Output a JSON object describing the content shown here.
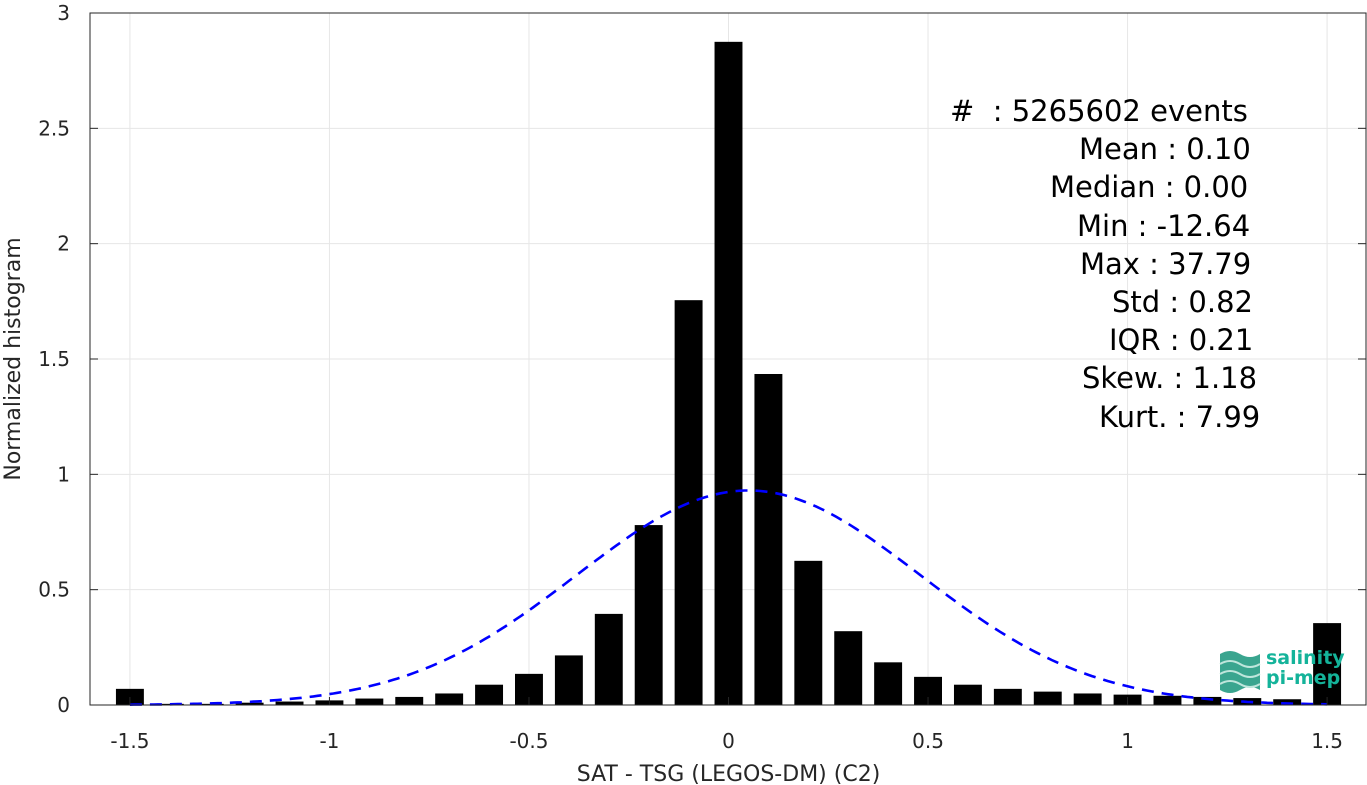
{
  "chart_data": {
    "type": "bar",
    "xlabel": "SAT - TSG (LEGOS-DM) (C2)",
    "ylabel": "Normalized histogram",
    "xlim": [
      -1.6,
      1.6
    ],
    "ylim": [
      0,
      3
    ],
    "xticks": [
      "-1.5",
      "-1",
      "-0.5",
      "0",
      "0.5",
      "1",
      "1.5"
    ],
    "yticks": [
      "0",
      "0.5",
      "1",
      "1.5",
      "2",
      "2.5",
      "3"
    ],
    "grid": true,
    "bar_centers": [
      -1.5,
      -1.4,
      -1.3,
      -1.2,
      -1.1,
      -1.0,
      -0.9,
      -0.8,
      -0.7,
      -0.6,
      -0.5,
      -0.4,
      -0.3,
      -0.2,
      -0.1,
      0.0,
      0.1,
      0.2,
      0.3,
      0.4,
      0.5,
      0.6,
      0.7,
      0.8,
      0.9,
      1.0,
      1.1,
      1.2,
      1.3,
      1.4,
      1.5
    ],
    "values": [
      0.07,
      0.005,
      0.005,
      0.01,
      0.015,
      0.02,
      0.028,
      0.035,
      0.05,
      0.088,
      0.135,
      0.215,
      0.395,
      0.78,
      1.755,
      2.875,
      1.435,
      0.625,
      0.32,
      0.185,
      0.122,
      0.088,
      0.07,
      0.058,
      0.05,
      0.045,
      0.04,
      0.035,
      0.03,
      0.025,
      0.355
    ],
    "fit_curve": {
      "style": "dashed",
      "color": "#0000ff",
      "mean": 0.05,
      "std": 0.43,
      "peak": 0.93
    },
    "stats": {
      "count": "#  : 5265602 events",
      "mean": "Mean : 0.10",
      "median": "Median : 0.00",
      "min": "Min : -12.64",
      "max": "Max : 37.79",
      "std": "Std : 0.82",
      "iqr": "IQR : 0.21",
      "skew": "Skew. : 1.18",
      "kurt": "Kurt. : 7.99"
    }
  },
  "logo": {
    "line1": "salinity",
    "line2": "pi-mep"
  },
  "colors": {
    "bars": "#000000",
    "fit": "#0000ff",
    "logo": "#14b39a"
  }
}
